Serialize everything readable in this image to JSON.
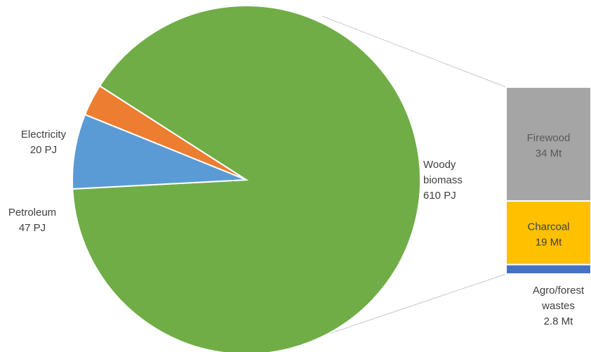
{
  "chart_data": [
    {
      "type": "pie",
      "unit": "PJ",
      "start_angle_deg": 158,
      "slices": [
        {
          "label": "Electricity",
          "value": 20,
          "value_text": "20 PJ",
          "color": "#ED7D31"
        },
        {
          "label": "Woody biomass",
          "label_lines": [
            "Woody",
            "biomass"
          ],
          "value": 610,
          "value_text": "610 PJ",
          "color": "#70AD47"
        },
        {
          "label": "Petroleum",
          "value": 47,
          "value_text": "47 PJ",
          "color": "#5B9BD5"
        }
      ],
      "breakdown_of": "Woody biomass"
    },
    {
      "type": "bar",
      "stacked": true,
      "unit": "Mt",
      "segments": [
        {
          "label": "Firewood",
          "value": 34,
          "value_text": "34 Mt",
          "color": "#A5A5A5"
        },
        {
          "label": "Charcoal",
          "value": 19,
          "value_text": "19 Mt",
          "color": "#FFC000"
        },
        {
          "label": "Agro/forest wastes",
          "label_lines": [
            "Agro/forest",
            "wastes"
          ],
          "value": 2.8,
          "value_text": "2.8 Mt",
          "color": "#4472C4"
        }
      ]
    }
  ]
}
